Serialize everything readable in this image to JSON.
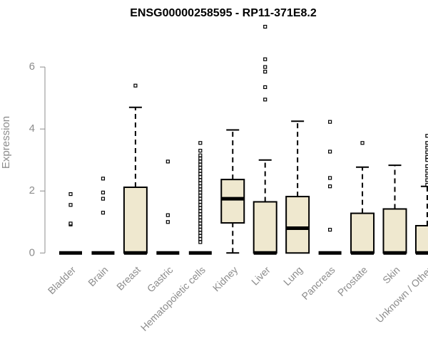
{
  "chart_data": {
    "type": "boxplot",
    "title": "ENSG00000258595 - RP11-371E8.2",
    "xlabel": "",
    "ylabel": "Expression",
    "ylim": [
      -0.2,
      7.45
    ],
    "yticks": [
      0,
      2,
      4,
      6
    ],
    "box_fill": "#efe8cf",
    "axis_color": "#8c8c8c",
    "categories": [
      "Bladder",
      "Brain",
      "Breast",
      "Gastric",
      "Hematopoietic cells",
      "Kidney",
      "Liver",
      "Lung",
      "Pancreas",
      "Prostate",
      "Skin",
      "Unknown / Other"
    ],
    "boxes": [
      {
        "q1": 0,
        "median": 0,
        "q3": 0,
        "whisker_low": 0,
        "whisker_high": 0,
        "outliers": [
          0.92,
          0.95,
          1.55,
          1.9
        ]
      },
      {
        "q1": 0,
        "median": 0,
        "q3": 0,
        "whisker_low": 0,
        "whisker_high": 0,
        "outliers": [
          1.3,
          1.75,
          1.95,
          2.4
        ]
      },
      {
        "q1": 0,
        "median": 0,
        "q3": 2.12,
        "whisker_low": 0,
        "whisker_high": 4.7,
        "outliers": [
          5.4
        ]
      },
      {
        "q1": 0,
        "median": 0,
        "q3": 0,
        "whisker_low": 0,
        "whisker_high": 0,
        "outliers": [
          1.0,
          1.22,
          2.95
        ]
      },
      {
        "q1": 0,
        "median": 0,
        "q3": 0,
        "whisker_low": 0,
        "whisker_high": 0,
        "outliers": [
          0.35,
          0.45,
          0.55,
          0.65,
          0.75,
          0.85,
          0.95,
          1.05,
          1.15,
          1.25,
          1.35,
          1.45,
          1.55,
          1.65,
          1.75,
          1.85,
          1.95,
          2.05,
          2.15,
          2.25,
          2.35,
          2.45,
          2.55,
          2.65,
          2.75,
          2.85,
          2.95,
          3.05,
          3.15,
          3.3,
          3.55
        ]
      },
      {
        "q1": 0.97,
        "median": 1.75,
        "q3": 2.37,
        "whisker_low": 0,
        "whisker_high": 3.97,
        "outliers": []
      },
      {
        "q1": 0,
        "median": 0,
        "q3": 1.65,
        "whisker_low": 0,
        "whisker_high": 3.0,
        "outliers": [
          4.95,
          5.35,
          5.85,
          6.0,
          6.25,
          7.3
        ]
      },
      {
        "q1": 0,
        "median": 0.8,
        "q3": 1.82,
        "whisker_low": 0,
        "whisker_high": 4.25,
        "outliers": []
      },
      {
        "q1": 0,
        "median": 0,
        "q3": 0,
        "whisker_low": 0,
        "whisker_high": 0,
        "outliers": [
          0.75,
          2.15,
          2.42,
          3.27,
          4.23
        ]
      },
      {
        "q1": 0,
        "median": 0,
        "q3": 1.28,
        "whisker_low": 0,
        "whisker_high": 2.77,
        "outliers": [
          3.55
        ]
      },
      {
        "q1": 0,
        "median": 0,
        "q3": 1.42,
        "whisker_low": 0,
        "whisker_high": 2.83,
        "outliers": []
      },
      {
        "q1": 0,
        "median": 0,
        "q3": 0.88,
        "whisker_low": 0,
        "whisker_high": 2.15,
        "outliers": [
          2.2,
          2.35,
          2.5,
          2.65,
          2.8,
          3.0,
          3.1,
          3.25,
          3.4,
          3.55,
          3.78
        ]
      }
    ]
  }
}
